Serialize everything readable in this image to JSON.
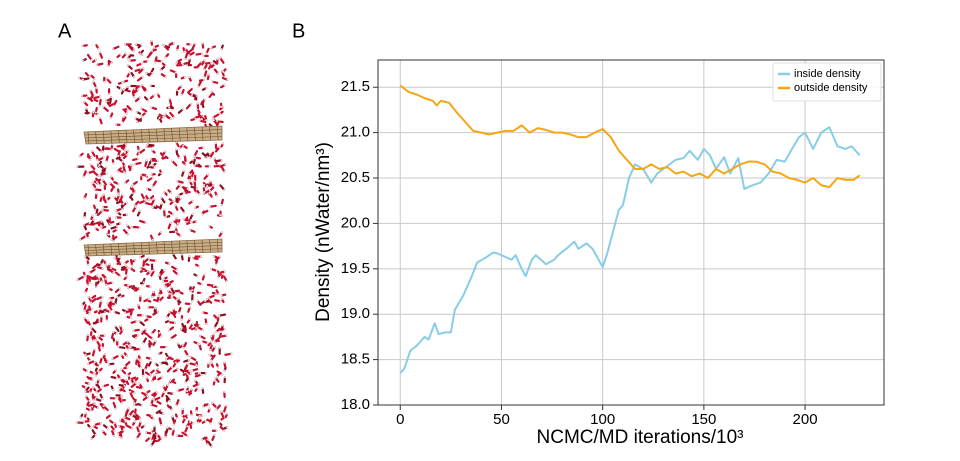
{
  "panel_labels": [
    "A",
    "B"
  ],
  "chart_data": {
    "type": "line",
    "x_label": "NCMC/MD iterations/10³",
    "y_label": "Density (nWater/nm³)",
    "xlim": [
      -11,
      239
    ],
    "ylim": [
      18.0,
      21.8
    ],
    "xticks": [
      0,
      50,
      100,
      150,
      200
    ],
    "yticks": [
      {
        "value": 18.0,
        "label": "18.0"
      },
      18.5,
      {
        "value": 19.0,
        "label": "19.0"
      },
      19.5,
      {
        "value": 20.0,
        "label": "20.0"
      },
      20.5,
      {
        "value": 21.0,
        "label": "21.0"
      },
      21.5
    ],
    "grid": true,
    "legend": "upper right",
    "series": [
      {
        "name": "inside density",
        "color": "#87cde6",
        "x": [
          0,
          2,
          5,
          8,
          12,
          14,
          17,
          19,
          22,
          25,
          27,
          31,
          35,
          38,
          42,
          46,
          48,
          52,
          55,
          57,
          60,
          62,
          65,
          67,
          72,
          76,
          78,
          82,
          86,
          88,
          92,
          95,
          100,
          102,
          105,
          108,
          110,
          113,
          116,
          120,
          124,
          127,
          130,
          133,
          136,
          140,
          143,
          147,
          150,
          153,
          156,
          160,
          163,
          167,
          170,
          174,
          178,
          182,
          186,
          190,
          193,
          197,
          200,
          204,
          208,
          212,
          216,
          220,
          223,
          227
        ],
        "values": [
          18.35,
          18.4,
          18.6,
          18.65,
          18.75,
          18.72,
          18.9,
          18.78,
          18.8,
          18.8,
          19.05,
          19.2,
          19.4,
          19.57,
          19.62,
          19.68,
          19.67,
          19.63,
          19.6,
          19.65,
          19.5,
          19.42,
          19.6,
          19.65,
          19.55,
          19.6,
          19.65,
          19.72,
          19.8,
          19.72,
          19.78,
          19.72,
          19.52,
          19.65,
          19.9,
          20.15,
          20.2,
          20.5,
          20.65,
          20.6,
          20.45,
          20.55,
          20.6,
          20.65,
          20.7,
          20.72,
          20.8,
          20.7,
          20.82,
          20.75,
          20.6,
          20.73,
          20.55,
          20.72,
          20.38,
          20.42,
          20.45,
          20.55,
          20.7,
          20.68,
          20.8,
          20.95,
          21.0,
          20.82,
          21.0,
          21.06,
          20.85,
          20.82,
          20.85,
          20.75
        ]
      },
      {
        "name": "outside density",
        "color": "#f5a614",
        "x": [
          0,
          4,
          8,
          12,
          16,
          18,
          20,
          24,
          28,
          32,
          36,
          40,
          44,
          48,
          52,
          56,
          60,
          64,
          68,
          72,
          76,
          80,
          84,
          88,
          92,
          96,
          100,
          104,
          108,
          112,
          116,
          120,
          124,
          128,
          132,
          136,
          140,
          144,
          148,
          152,
          156,
          160,
          164,
          168,
          172,
          176,
          180,
          184,
          188,
          192,
          196,
          200,
          204,
          208,
          212,
          216,
          220,
          224,
          227
        ],
        "values": [
          21.52,
          21.45,
          21.42,
          21.38,
          21.35,
          21.3,
          21.35,
          21.33,
          21.22,
          21.12,
          21.02,
          21.0,
          20.98,
          21.0,
          21.02,
          21.02,
          21.08,
          21.0,
          21.05,
          21.03,
          21.0,
          21.0,
          20.98,
          20.95,
          20.95,
          21.0,
          21.04,
          20.95,
          20.8,
          20.7,
          20.6,
          20.6,
          20.65,
          20.6,
          20.62,
          20.55,
          20.57,
          20.52,
          20.55,
          20.5,
          20.6,
          20.55,
          20.6,
          20.65,
          20.68,
          20.68,
          20.65,
          20.57,
          20.55,
          20.5,
          20.48,
          20.45,
          20.5,
          20.42,
          20.4,
          20.5,
          20.48,
          20.48,
          20.53
        ]
      }
    ]
  }
}
